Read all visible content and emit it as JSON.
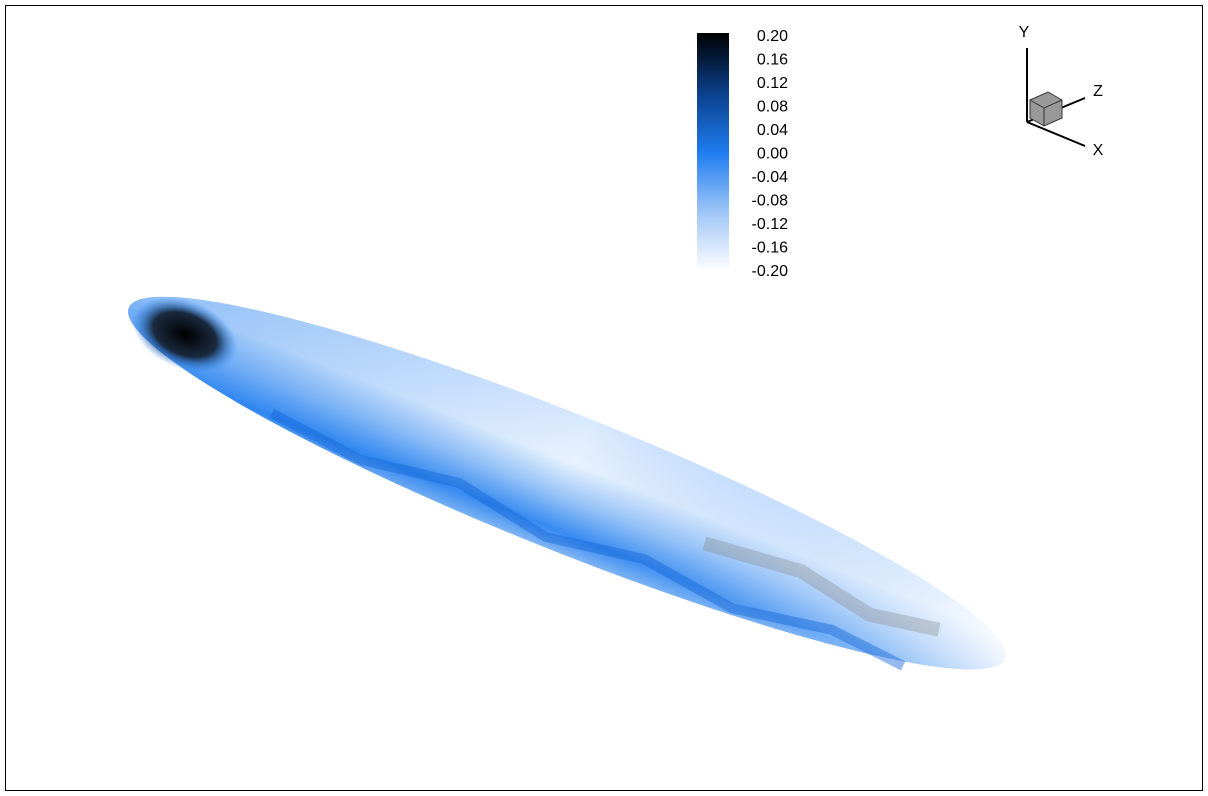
{
  "colorbar": {
    "labels": [
      "0.20",
      "0.16",
      "0.12",
      "0.08",
      "0.04",
      "0.00",
      "-0.04",
      "-0.08",
      "-0.12",
      "-0.16",
      "-0.20"
    ]
  },
  "triad": {
    "y_label": "Y",
    "z_label": "Z",
    "x_label": "X"
  }
}
